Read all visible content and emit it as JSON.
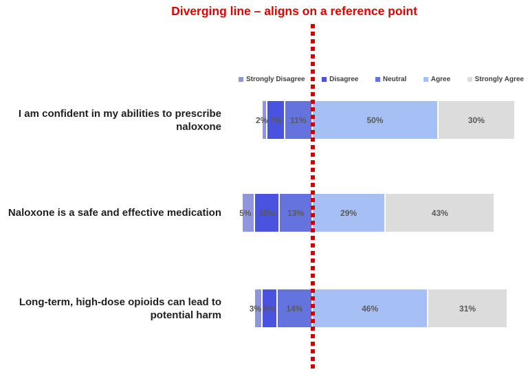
{
  "title": {
    "text": "Diverging line – aligns on a reference point"
  },
  "colors": {
    "title": "#e00000",
    "reference_line": "#d40000",
    "segment_label": "#595959",
    "category_label": "#1f1f1f",
    "legend_label": "#404040"
  },
  "chart_data": {
    "type": "bar",
    "variant": "diverging-stacked-horizontal",
    "reference_point": "bars align on the Neutral/Agree boundary",
    "legend_position": "top",
    "data_labels": true,
    "value_suffix": "%",
    "categories": [
      "I am confident in my abilities to prescribe naloxone",
      "Naloxone is a safe and effective medication",
      "Long-term, high-dose opioids can lead to potential harm"
    ],
    "series": [
      {
        "name": "Strongly Disagree",
        "color": "#9096db",
        "values": [
          2,
          5,
          3
        ]
      },
      {
        "name": "Disagree",
        "color": "#4953e0",
        "values": [
          7,
          10,
          6
        ]
      },
      {
        "name": "Neutral",
        "color": "#6473de",
        "values": [
          11,
          13,
          14
        ]
      },
      {
        "name": "Agree",
        "color": "#a6c0f5",
        "values": [
          50,
          29,
          46
        ]
      },
      {
        "name": "Strongly Agree",
        "color": "#dcdcdc",
        "values": [
          30,
          43,
          31
        ]
      }
    ]
  }
}
